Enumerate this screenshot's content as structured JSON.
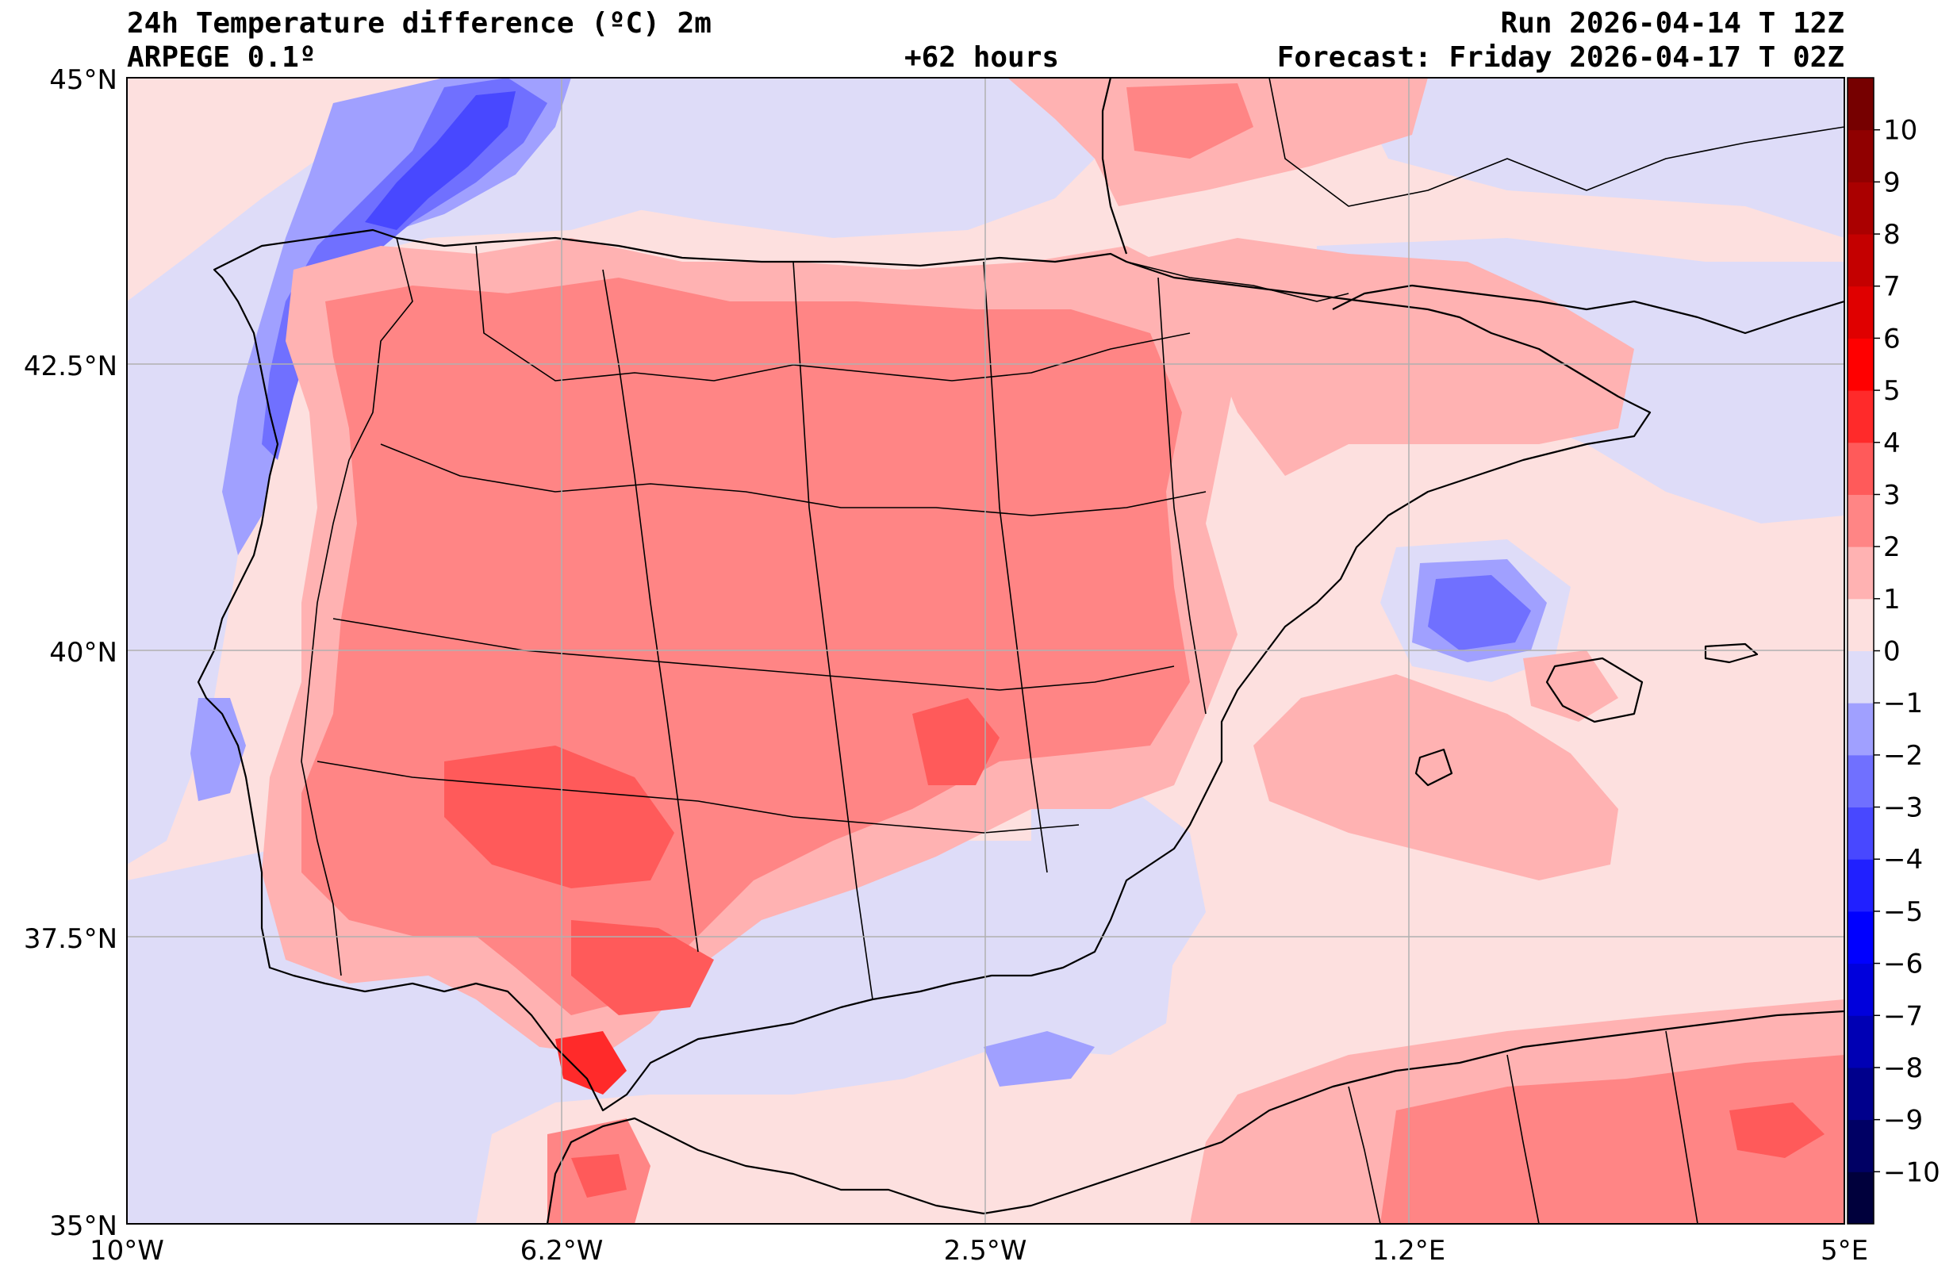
{
  "header": {
    "title": "24h Temperature difference (ºC) 2m",
    "model": "ARPEGE 0.1º",
    "lead": "+62 hours",
    "run": "Run 2026-04-14 T 12Z",
    "forecast": "Forecast: Friday 2026-04-17 T 02Z"
  },
  "map": {
    "lon_range": [
      -10,
      5
    ],
    "lat_range": [
      35,
      45
    ],
    "lon_ticks": [
      {
        "value": -10,
        "label": "10°W"
      },
      {
        "value": -6.2,
        "label": "6.2°W"
      },
      {
        "value": -2.5,
        "label": "2.5°W"
      },
      {
        "value": 1.2,
        "label": "1.2°E"
      },
      {
        "value": 5,
        "label": "5°E"
      }
    ],
    "lat_ticks": [
      {
        "value": 45,
        "label": "45°N"
      },
      {
        "value": 42.5,
        "label": "42.5°N"
      },
      {
        "value": 40,
        "label": "40°N"
      },
      {
        "value": 37.5,
        "label": "37.5°N"
      },
      {
        "value": 35,
        "label": "35°N"
      }
    ],
    "grid": true
  },
  "colorbar": {
    "levels": [
      -11,
      -10,
      -9,
      -8,
      -7,
      -6,
      -5,
      -4,
      -3,
      -2,
      -1,
      0,
      1,
      2,
      3,
      4,
      5,
      6,
      7,
      8,
      9,
      10,
      11
    ],
    "colors": [
      "#00003c",
      "#000064",
      "#00008c",
      "#0000b4",
      "#0000dc",
      "#0000ff",
      "#2020ff",
      "#4848ff",
      "#7070ff",
      "#a0a0ff",
      "#dedcf8",
      "#fde0df",
      "#ffb2b2",
      "#ff8585",
      "#ff5a5a",
      "#ff2a2a",
      "#ff0000",
      "#e00000",
      "#c40000",
      "#aa0000",
      "#900000",
      "#760000"
    ],
    "tick_labels": [
      "−10",
      "−9",
      "−8",
      "−7",
      "−6",
      "−5",
      "−4",
      "−3",
      "−2",
      "−1",
      "0",
      "1",
      "2",
      "3",
      "4",
      "5",
      "6",
      "7",
      "8",
      "9",
      "10"
    ],
    "tick_values": [
      -10,
      -9,
      -8,
      -7,
      -6,
      -5,
      -4,
      -3,
      -2,
      -1,
      0,
      1,
      2,
      3,
      4,
      5,
      6,
      7,
      8,
      9,
      10
    ]
  }
}
